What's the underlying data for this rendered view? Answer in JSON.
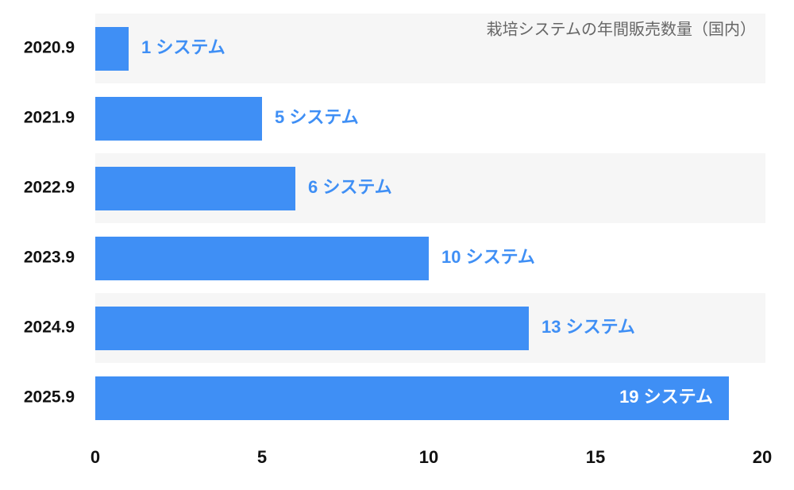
{
  "chart_data": {
    "type": "bar",
    "orientation": "horizontal",
    "annotation": "栽培システムの年間販売数量（国内）",
    "categories": [
      "2020.9",
      "2021.9",
      "2022.9",
      "2023.9",
      "2024.9",
      "2025.9"
    ],
    "values": [
      1,
      5,
      6,
      10,
      13,
      19
    ],
    "value_labels": [
      "1 システム",
      "5 システム",
      "6 システム",
      "10 システム",
      "13 システム",
      "19 システム"
    ],
    "color": "#3f8ff5",
    "xlim": [
      0,
      20
    ],
    "xticks": [
      0,
      5,
      10,
      15,
      20
    ]
  }
}
